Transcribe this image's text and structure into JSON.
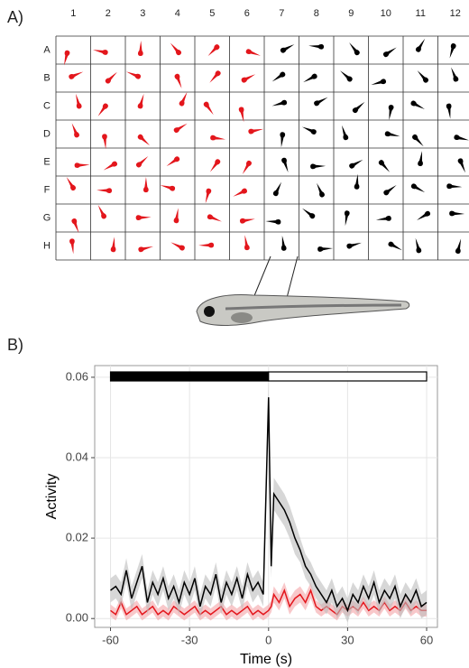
{
  "panel_labels": [
    "A)",
    "B)"
  ],
  "plate": {
    "columns": [
      "1",
      "2",
      "3",
      "4",
      "5",
      "6",
      "7",
      "8",
      "9",
      "10",
      "11",
      "12"
    ],
    "rows": [
      "A",
      "B",
      "C",
      "D",
      "E",
      "F",
      "G",
      "H"
    ],
    "well_colors": [
      "#e3161c",
      "#e3161c",
      "#e3161c",
      "#e3161c",
      "#e3161c",
      "#e3161c",
      "#000000",
      "#000000",
      "#000000",
      "#000000",
      "#000000",
      "#000000"
    ]
  },
  "chart_data": {
    "type": "line",
    "xlabel": "Time (s)",
    "ylabel": "Activity",
    "x": [
      -60,
      -58,
      -56,
      -54,
      -52,
      -50,
      -48,
      -46,
      -44,
      -42,
      -40,
      -38,
      -36,
      -34,
      -32,
      -30,
      -28,
      -26,
      -24,
      -22,
      -20,
      -18,
      -16,
      -14,
      -12,
      -10,
      -8,
      -6,
      -4,
      -2,
      0,
      1,
      2,
      4,
      6,
      8,
      10,
      12,
      14,
      16,
      18,
      20,
      22,
      24,
      26,
      28,
      30,
      32,
      34,
      36,
      38,
      40,
      42,
      44,
      46,
      48,
      50,
      52,
      54,
      56,
      58,
      60
    ],
    "series": [
      {
        "color": "#000000",
        "band_color": "#bdbdbd",
        "values": [
          0.007,
          0.008,
          0.006,
          0.012,
          0.005,
          0.009,
          0.013,
          0.004,
          0.009,
          0.006,
          0.01,
          0.005,
          0.008,
          0.004,
          0.009,
          0.006,
          0.01,
          0.003,
          0.008,
          0.006,
          0.011,
          0.004,
          0.009,
          0.006,
          0.01,
          0.005,
          0.011,
          0.007,
          0.009,
          0.006,
          0.055,
          0.013,
          0.031,
          0.029,
          0.027,
          0.024,
          0.02,
          0.017,
          0.013,
          0.011,
          0.008,
          0.006,
          0.004,
          0.007,
          0.003,
          0.005,
          0.002,
          0.006,
          0.004,
          0.008,
          0.005,
          0.009,
          0.004,
          0.007,
          0.005,
          0.008,
          0.003,
          0.006,
          0.004,
          0.007,
          0.003,
          0.004
        ],
        "errors": [
          0.003,
          0.003,
          0.003,
          0.003,
          0.003,
          0.003,
          0.003,
          0.003,
          0.003,
          0.003,
          0.003,
          0.003,
          0.003,
          0.003,
          0.003,
          0.003,
          0.003,
          0.003,
          0.003,
          0.003,
          0.003,
          0.003,
          0.003,
          0.003,
          0.003,
          0.003,
          0.003,
          0.003,
          0.003,
          0.003,
          0.004,
          0.003,
          0.004,
          0.004,
          0.004,
          0.004,
          0.004,
          0.003,
          0.003,
          0.003,
          0.003,
          0.003,
          0.003,
          0.003,
          0.003,
          0.003,
          0.003,
          0.003,
          0.003,
          0.003,
          0.003,
          0.003,
          0.003,
          0.003,
          0.003,
          0.003,
          0.003,
          0.003,
          0.003,
          0.003,
          0.003,
          0.003
        ]
      },
      {
        "color": "#e3161c",
        "band_color": "#f4a3a6",
        "values": [
          0.002,
          0.001,
          0.004,
          0.001,
          0.002,
          0.003,
          0.001,
          0.002,
          0.003,
          0.001,
          0.002,
          0.001,
          0.003,
          0.002,
          0.001,
          0.002,
          0.003,
          0.001,
          0.002,
          0.001,
          0.002,
          0.003,
          0.001,
          0.002,
          0.001,
          0.002,
          0.003,
          0.001,
          0.002,
          0.001,
          0.002,
          0.003,
          0.006,
          0.004,
          0.007,
          0.003,
          0.005,
          0.006,
          0.004,
          0.007,
          0.003,
          0.002,
          0.003,
          0.002,
          0.001,
          0.003,
          0.002,
          0.003,
          0.002,
          0.004,
          0.002,
          0.003,
          0.002,
          0.004,
          0.002,
          0.003,
          0.002,
          0.004,
          0.002,
          0.003,
          0.002,
          0.002
        ],
        "errors": [
          0.0015,
          0.0015,
          0.0015,
          0.0015,
          0.0015,
          0.0015,
          0.0015,
          0.0015,
          0.0015,
          0.0015,
          0.0015,
          0.0015,
          0.0015,
          0.0015,
          0.0015,
          0.0015,
          0.0015,
          0.0015,
          0.0015,
          0.0015,
          0.0015,
          0.0015,
          0.0015,
          0.0015,
          0.0015,
          0.0015,
          0.0015,
          0.0015,
          0.0015,
          0.0015,
          0.0015,
          0.0015,
          0.002,
          0.002,
          0.002,
          0.002,
          0.002,
          0.002,
          0.002,
          0.002,
          0.0015,
          0.0015,
          0.0015,
          0.0015,
          0.0015,
          0.0015,
          0.0015,
          0.0015,
          0.0015,
          0.0015,
          0.0015,
          0.0015,
          0.0015,
          0.0015,
          0.0015,
          0.0015,
          0.0015,
          0.0015,
          0.0015,
          0.0015,
          0.0015,
          0.0015
        ]
      }
    ],
    "stimulus": [
      {
        "start": -60,
        "end": 0,
        "color": "#000000"
      },
      {
        "start": 0,
        "end": 60,
        "color": "#ffffff"
      }
    ],
    "xlim": [
      -66,
      64.1
    ],
    "ylim": [
      -0.0022,
      0.0629
    ],
    "xticks": [
      -60,
      -30,
      0,
      30,
      60
    ],
    "yticks": [
      {
        "value": 0,
        "label": "0.00"
      },
      {
        "value": 0.02,
        "label": "0.02"
      },
      {
        "value": 0.04,
        "label": "0.04"
      },
      {
        "value": 0.06,
        "label": "0.06"
      }
    ],
    "grid": true
  }
}
